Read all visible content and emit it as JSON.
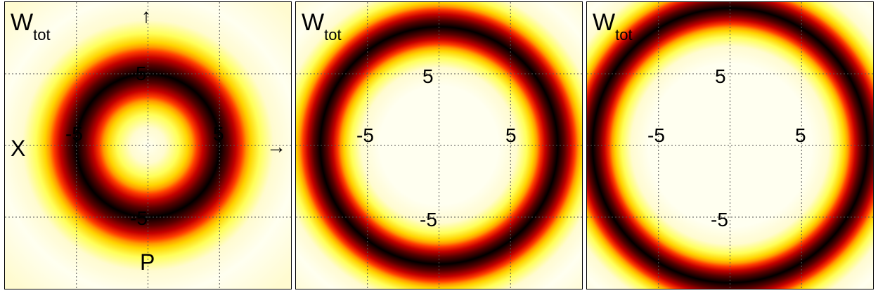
{
  "chart_data": [
    {
      "type": "heatmap",
      "title": "W",
      "title_sub": "tot",
      "xlabel": "X",
      "ylabel": "P",
      "xlim": [
        -10,
        10
      ],
      "ylim": [
        -10,
        10
      ],
      "ring_radius": 5.0,
      "ring_width": 2.1,
      "x_ticks": [
        -5,
        5
      ],
      "y_ticks": [
        5,
        -5
      ],
      "x_tick_labels": [
        "-5",
        "5"
      ],
      "y_tick_labels": [
        "5",
        "-5"
      ],
      "grid": true,
      "colormap": "hot",
      "axis_arrows": true
    },
    {
      "type": "heatmap",
      "title": "W",
      "title_sub": "tot",
      "xlim": [
        -10,
        10
      ],
      "ylim": [
        -10,
        10
      ],
      "ring_radius": 8.3,
      "ring_width": 1.6,
      "x_ticks": [
        -5,
        5
      ],
      "y_ticks": [
        5,
        -5
      ],
      "x_tick_labels": [
        "-5",
        "5"
      ],
      "y_tick_labels": [
        "5",
        "-5"
      ],
      "grid": true,
      "colormap": "hot"
    },
    {
      "type": "heatmap",
      "title": "W",
      "title_sub": "tot",
      "xlim": [
        -10,
        10
      ],
      "ylim": [
        -10,
        10
      ],
      "ring_radius": 9.6,
      "ring_width": 1.5,
      "x_ticks": [
        -5,
        5
      ],
      "y_ticks": [
        5,
        -5
      ],
      "x_tick_labels": [
        "-5",
        "5"
      ],
      "y_tick_labels": [
        "5",
        "-5"
      ],
      "grid": true,
      "colormap": "hot"
    }
  ],
  "arrows": {
    "up": "↑",
    "right": "→"
  }
}
